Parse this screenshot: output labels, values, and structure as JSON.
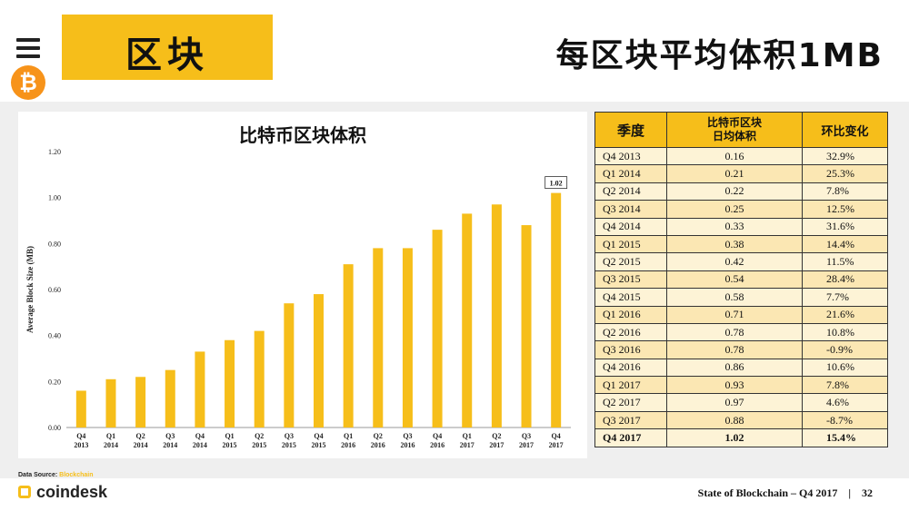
{
  "section_tag": "区块",
  "slide_title": "每区块平均体积1MB",
  "chart_data": {
    "type": "bar",
    "title": "比特币区块体积",
    "ylabel": "Average Block Size (MB)",
    "xlabel": "",
    "ylim": [
      0,
      1.2
    ],
    "yticks": [
      "0.00",
      "0.20",
      "0.40",
      "0.60",
      "0.80",
      "1.00",
      "1.20"
    ],
    "categories": [
      [
        "Q4",
        "2013"
      ],
      [
        "Q1",
        "2014"
      ],
      [
        "Q2",
        "2014"
      ],
      [
        "Q3",
        "2014"
      ],
      [
        "Q4",
        "2014"
      ],
      [
        "Q1",
        "2015"
      ],
      [
        "Q2",
        "2015"
      ],
      [
        "Q3",
        "2015"
      ],
      [
        "Q4",
        "2015"
      ],
      [
        "Q1",
        "2016"
      ],
      [
        "Q2",
        "2016"
      ],
      [
        "Q3",
        "2016"
      ],
      [
        "Q4",
        "2016"
      ],
      [
        "Q1",
        "2017"
      ],
      [
        "Q2",
        "2017"
      ],
      [
        "Q3",
        "2017"
      ],
      [
        "Q4",
        "2017"
      ]
    ],
    "values": [
      0.16,
      0.21,
      0.22,
      0.25,
      0.33,
      0.38,
      0.42,
      0.54,
      0.58,
      0.71,
      0.78,
      0.78,
      0.86,
      0.93,
      0.97,
      0.88,
      1.02
    ],
    "data_label": "1.02",
    "bar_color": "#f6be1a",
    "grid": false
  },
  "table": {
    "headers": {
      "quarter": "季度",
      "size_line1": "比特币区块",
      "size_line2": "日均体积",
      "change": "环比变化"
    },
    "rows": [
      {
        "quarter": "Q4 2013",
        "size": "0.16",
        "change": "32.9%"
      },
      {
        "quarter": "Q1 2014",
        "size": "0.21",
        "change": "25.3%"
      },
      {
        "quarter": "Q2 2014",
        "size": "0.22",
        "change": "7.8%"
      },
      {
        "quarter": "Q3 2014",
        "size": "0.25",
        "change": "12.5%"
      },
      {
        "quarter": "Q4 2014",
        "size": "0.33",
        "change": "31.6%"
      },
      {
        "quarter": "Q1 2015",
        "size": "0.38",
        "change": "14.4%"
      },
      {
        "quarter": "Q2 2015",
        "size": "0.42",
        "change": "11.5%"
      },
      {
        "quarter": "Q3 2015",
        "size": "0.54",
        "change": "28.4%"
      },
      {
        "quarter": "Q4 2015",
        "size": "0.58",
        "change": "7.7%"
      },
      {
        "quarter": "Q1 2016",
        "size": "0.71",
        "change": "21.6%"
      },
      {
        "quarter": "Q2 2016",
        "size": "0.78",
        "change": "10.8%"
      },
      {
        "quarter": "Q3 2016",
        "size": "0.78",
        "change": "-0.9%"
      },
      {
        "quarter": "Q4 2016",
        "size": "0.86",
        "change": "10.6%"
      },
      {
        "quarter": "Q1 2017",
        "size": "0.93",
        "change": "7.8%"
      },
      {
        "quarter": "Q2 2017",
        "size": "0.97",
        "change": "4.6%"
      },
      {
        "quarter": "Q3 2017",
        "size": "0.88",
        "change": "-8.7%"
      },
      {
        "quarter": "Q4 2017",
        "size": "1.02",
        "change": "15.4%"
      }
    ]
  },
  "footer": {
    "data_source_label": "Data Source:",
    "data_source_name": "Blockchain",
    "logo_text": "coindesk",
    "report": "State of Blockchain – Q4 2017",
    "separator": "|",
    "page": "32"
  },
  "icons": {
    "menu": "menu-icon",
    "bitcoin": "bitcoin-icon",
    "logo": "coindesk-logo-icon"
  },
  "colors": {
    "accent": "#f6be1a",
    "bitcoin": "#f7931a",
    "row_light": "#fdf3d6",
    "row_dark": "#fbe7b3"
  }
}
